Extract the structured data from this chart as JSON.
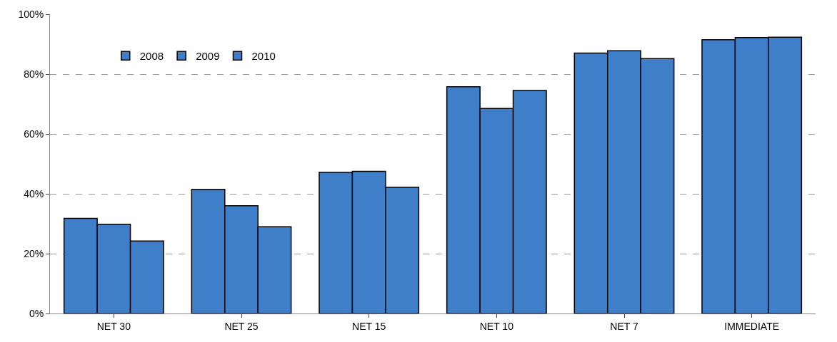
{
  "chart_data": {
    "type": "bar",
    "categories": [
      "NET 30",
      "NET 25",
      "NET 15",
      "NET 10",
      "NET 7",
      "IMMEDIATE"
    ],
    "series": [
      {
        "name": "2008",
        "color": "#3f7fca",
        "values": [
          31.8,
          41.5,
          47.2,
          75.8,
          87,
          91.5
        ]
      },
      {
        "name": "2009",
        "color": "#3f7fca",
        "values": [
          29.8,
          36,
          47.5,
          68.5,
          87.8,
          92.2
        ]
      },
      {
        "name": "2010",
        "color": "#3f7fca",
        "values": [
          24.2,
          29,
          42.2,
          74.5,
          85.2,
          92.3
        ]
      }
    ],
    "ylim": [
      0,
      100
    ],
    "yticks": [
      {
        "value": 0,
        "label": "0%"
      },
      {
        "value": 20,
        "label": "20%"
      },
      {
        "value": 40,
        "label": "40%"
      },
      {
        "value": 60,
        "label": "60%"
      },
      {
        "value": 80,
        "label": "80%"
      },
      {
        "value": 100,
        "label": "100%"
      }
    ],
    "grid": "y",
    "legend": "top left"
  }
}
